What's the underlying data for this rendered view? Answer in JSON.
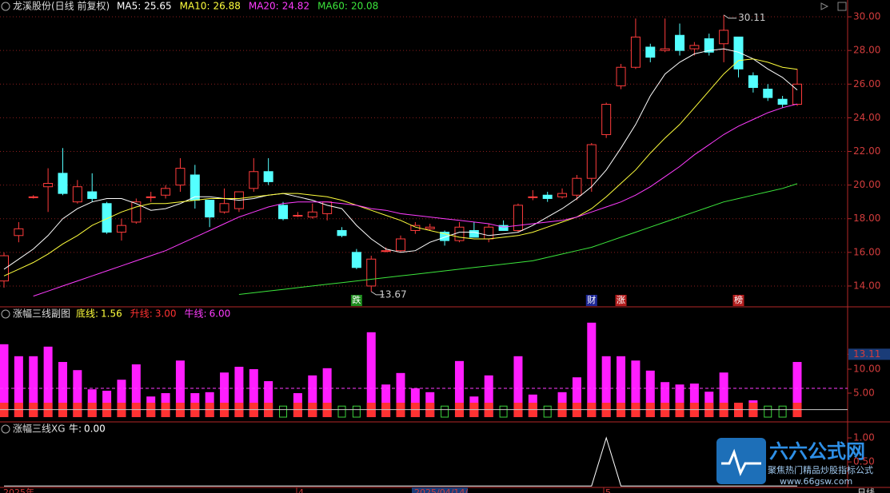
{
  "chart_data": [
    {
      "type": "candlestick",
      "title": "龙溪股份(日线 前复权)",
      "open": [
        14.3,
        17.0,
        19.3,
        19.9,
        20.7,
        19.0,
        19.6,
        18.9,
        17.2,
        17.8,
        19.3,
        19.4,
        20.0,
        20.6,
        19.1,
        18.4,
        18.6,
        19.8,
        20.8,
        18.8,
        18.2,
        18.1,
        18.3,
        17.3,
        16.0,
        14.0,
        16.1,
        16.1,
        17.3,
        17.4,
        17.2,
        16.7,
        17.3,
        16.8,
        17.6,
        17.3,
        19.3,
        19.4,
        19.3,
        19.4,
        20.4,
        23.0,
        25.9,
        27.0,
        28.2,
        28.0,
        28.9,
        28.1,
        28.7,
        28.4,
        28.8,
        26.5,
        25.7,
        25.1,
        24.8
      ],
      "high": [
        16.0,
        17.8,
        19.4,
        21.0,
        22.2,
        20.3,
        20.7,
        19.0,
        18.0,
        19.2,
        19.6,
        20.0,
        21.6,
        21.2,
        19.1,
        19.8,
        19.6,
        21.6,
        21.6,
        19.0,
        18.4,
        18.9,
        19.0,
        17.5,
        16.2,
        15.8,
        16.3,
        17.0,
        17.8,
        17.7,
        17.3,
        17.8,
        17.8,
        17.7,
        17.9,
        18.9,
        19.7,
        19.6,
        19.8,
        20.6,
        22.5,
        24.9,
        27.2,
        29.9,
        28.4,
        29.9,
        29.6,
        28.5,
        29.0,
        30.11,
        28.8,
        26.7,
        26.0,
        25.3,
        26.9
      ],
      "low": [
        13.9,
        16.6,
        19.2,
        18.4,
        19.4,
        18.9,
        19.0,
        17.1,
        16.7,
        17.7,
        19.0,
        19.2,
        19.6,
        18.6,
        17.5,
        18.3,
        18.4,
        19.6,
        20.0,
        17.9,
        18.1,
        18.0,
        17.9,
        16.9,
        15.0,
        13.67,
        16.0,
        16.0,
        17.1,
        17.3,
        16.4,
        16.6,
        16.9,
        16.6,
        17.3,
        17.2,
        19.1,
        19.0,
        19.2,
        19.1,
        19.6,
        22.8,
        25.7,
        26.9,
        27.3,
        27.9,
        27.7,
        27.7,
        27.7,
        27.3,
        26.4,
        25.5,
        25.0,
        24.6,
        24.7
      ],
      "close": [
        15.8,
        17.4,
        19.3,
        20.1,
        19.5,
        19.9,
        19.2,
        17.2,
        17.6,
        19.0,
        19.3,
        19.8,
        21.0,
        19.1,
        18.1,
        18.9,
        19.6,
        20.8,
        20.2,
        18.0,
        18.2,
        18.4,
        19.0,
        17.0,
        15.1,
        15.6,
        16.1,
        16.8,
        17.6,
        17.5,
        16.7,
        17.5,
        16.9,
        17.5,
        17.3,
        18.8,
        19.3,
        19.2,
        19.5,
        20.4,
        22.4,
        24.8,
        27.0,
        28.8,
        27.6,
        28.1,
        28.0,
        28.3,
        27.9,
        29.2,
        26.9,
        25.8,
        25.2,
        24.8,
        26.0
      ],
      "up_color": "#ff3c3c",
      "down_color": "#54ffff",
      "series": [
        {
          "name": "MA5:",
          "color": "#ffffff",
          "values": [
            15.0,
            15.6,
            16.2,
            17.0,
            18.0,
            18.6,
            19.0,
            19.2,
            19.2,
            18.9,
            18.5,
            18.6,
            18.9,
            19.3,
            19.3,
            19.2,
            19.1,
            19.2,
            19.4,
            19.5,
            19.3,
            19.1,
            18.8,
            18.6,
            17.6,
            16.8,
            16.2,
            16.0,
            16.1,
            16.6,
            16.9,
            17.2,
            17.2,
            17.0,
            17.1,
            17.2,
            17.6,
            18.1,
            18.6,
            19.2,
            19.9,
            20.9,
            22.2,
            23.6,
            25.3,
            26.6,
            27.3,
            27.8,
            28.0,
            28.1,
            27.9,
            27.5,
            26.9,
            26.4,
            25.65
          ]
        },
        {
          "name": "MA10:",
          "color": "#ffff3c",
          "values": [
            14.6,
            15.0,
            15.4,
            15.9,
            16.5,
            17.0,
            17.6,
            18.0,
            18.4,
            18.7,
            18.9,
            18.9,
            19.0,
            19.1,
            19.2,
            19.2,
            19.2,
            19.3,
            19.4,
            19.5,
            19.5,
            19.4,
            19.3,
            19.1,
            18.8,
            18.5,
            18.2,
            17.9,
            17.5,
            17.3,
            17.1,
            16.9,
            16.8,
            16.8,
            16.9,
            17.0,
            17.2,
            17.5,
            17.8,
            18.1,
            18.6,
            19.3,
            20.1,
            20.9,
            21.9,
            22.8,
            23.6,
            24.6,
            25.6,
            26.6,
            27.4,
            27.5,
            27.3,
            27.0,
            26.88
          ]
        },
        {
          "name": "MA20:",
          "color": "#ff3cff",
          "values": [
            null,
            null,
            13.4,
            13.7,
            14.0,
            14.3,
            14.6,
            14.9,
            15.2,
            15.5,
            15.8,
            16.1,
            16.5,
            16.9,
            17.3,
            17.7,
            18.1,
            18.4,
            18.7,
            18.9,
            19.0,
            19.0,
            19.0,
            18.9,
            18.8,
            18.6,
            18.5,
            18.3,
            18.2,
            18.1,
            18.0,
            17.9,
            17.8,
            17.7,
            17.5,
            17.6,
            17.7,
            17.8,
            17.9,
            18.1,
            18.4,
            18.7,
            19.0,
            19.4,
            19.9,
            20.5,
            21.1,
            21.8,
            22.4,
            23.0,
            23.5,
            23.9,
            24.3,
            24.6,
            24.82
          ]
        },
        {
          "name": "MA60:",
          "color": "#3ce63c",
          "values": [
            null,
            null,
            null,
            null,
            null,
            null,
            null,
            null,
            null,
            null,
            null,
            null,
            null,
            null,
            null,
            null,
            13.5,
            13.6,
            13.7,
            13.8,
            13.9,
            14.0,
            14.1,
            14.2,
            14.3,
            14.4,
            14.5,
            14.6,
            14.7,
            14.8,
            14.9,
            15.0,
            15.1,
            15.2,
            15.3,
            15.4,
            15.5,
            15.7,
            15.9,
            16.1,
            16.3,
            16.6,
            16.9,
            17.2,
            17.5,
            17.8,
            18.1,
            18.4,
            18.7,
            19.0,
            19.2,
            19.4,
            19.6,
            19.8,
            20.08
          ]
        }
      ],
      "event_markers": [
        "跌",
        "财",
        "涨",
        "榜"
      ],
      "ylim": [
        12.81,
        31.0
      ],
      "yticks": [
        {
          "value": 14,
          "label": "14.00"
        },
        {
          "value": 16,
          "label": "16.00"
        },
        {
          "value": 18,
          "label": "18.00"
        },
        {
          "value": 20,
          "label": "20.00"
        },
        {
          "value": 22,
          "label": "22.00"
        },
        {
          "value": 24,
          "label": "24.00"
        },
        {
          "value": 26,
          "label": "26.00"
        },
        {
          "value": 28,
          "label": "28.00"
        },
        {
          "value": 30,
          "label": "30.00"
        }
      ],
      "grid": true
    },
    {
      "type": "bar",
      "title": "涨幅三线副图",
      "color": "#ff1eff",
      "low_color": "#3cd23c",
      "values": [
        15.2,
        12.7,
        12.7,
        14.7,
        11.5,
        9.8,
        5.8,
        5.5,
        7.8,
        11.0,
        4.3,
        5.0,
        11.8,
        5.0,
        5.2,
        9.3,
        10.5,
        10.0,
        7.5,
        2.3,
        5.0,
        8.7,
        10.2,
        2.3,
        2.3,
        17.7,
        6.8,
        9.2,
        6.0,
        5.2,
        2.3,
        11.7,
        4.3,
        8.7,
        2.3,
        12.7,
        4.7,
        2.3,
        5.2,
        8.3,
        19.7,
        12.7,
        12.7,
        11.8,
        9.7,
        7.3,
        6.8,
        7.0,
        5.3,
        9.3,
        3.0,
        3.5,
        2.3,
        2.3,
        11.5
      ],
      "lines": [
        {
          "name": "底线:",
          "value": 1.56,
          "label": "1.56",
          "color": "#ffff3c"
        },
        {
          "name": "升线:",
          "value": 3,
          "label": "3.00",
          "color": "#ff3232"
        },
        {
          "name": "牛线:",
          "value": 6,
          "label": "6.00",
          "color": "#ff3cff"
        }
      ],
      "ylim": [
        -0.83,
        22.67
      ],
      "yticks": [
        {
          "value": 5,
          "label": "5.00"
        },
        {
          "value": 10,
          "label": "10.00"
        },
        {
          "value": 13.11,
          "label": "13.11"
        }
      ]
    },
    {
      "type": "line",
      "title": "涨幅三线XG",
      "series": [
        {
          "name": "牛:",
          "color": "#ffffff",
          "value_label": "0.00",
          "values": [
            0,
            0,
            0,
            0,
            0,
            0,
            0,
            0,
            0,
            0,
            0,
            0,
            0,
            0,
            0,
            0,
            0,
            0,
            0,
            0,
            0,
            0,
            0,
            0,
            0,
            0,
            0,
            0,
            0,
            0,
            0,
            0,
            0,
            0,
            0,
            0,
            0,
            0,
            0,
            0,
            0,
            1,
            0,
            0,
            0,
            0,
            0,
            0,
            0,
            0,
            0,
            0,
            0,
            0,
            0
          ]
        }
      ],
      "ylim": [
        -0.03,
        1.3
      ],
      "yticks": [
        {
          "value": 0.5,
          "label": "0.50"
        },
        {
          "value": 1,
          "label": "1.00"
        }
      ],
      "x_labels": [
        "2025年",
        "4",
        "2025/04/14/",
        "5",
        "日线"
      ]
    }
  ],
  "watermark": {
    "title": "六六公式网",
    "subtitle": "聚焦热门精品炒股指标公式",
    "url": "www.66gsw.com"
  }
}
